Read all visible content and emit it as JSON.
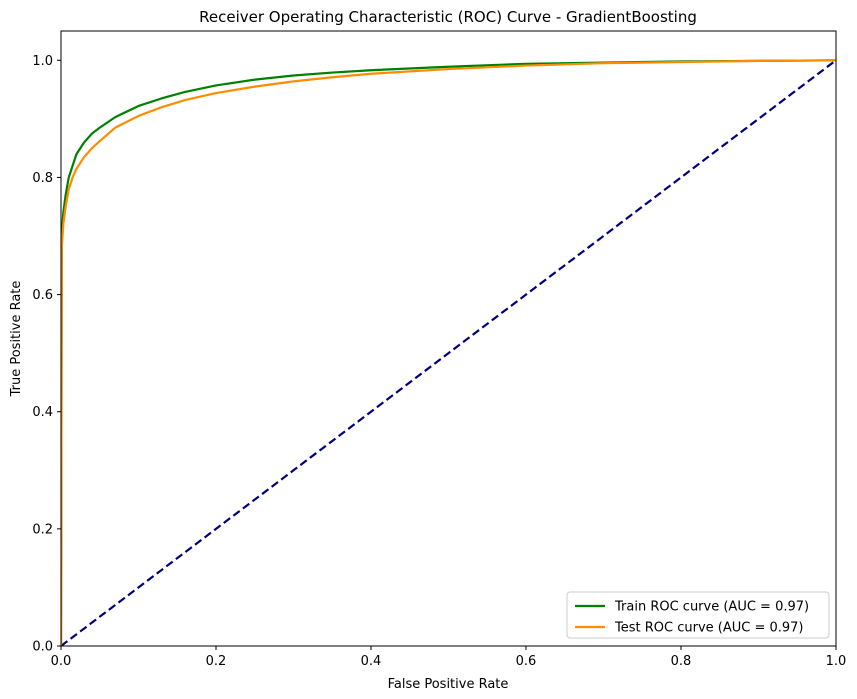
{
  "chart_data": {
    "type": "line",
    "title": "Receiver Operating Characteristic (ROC) Curve - GradientBoosting",
    "xlabel": "False Positive Rate",
    "ylabel": "True Positive Rate",
    "xlim": [
      0,
      1
    ],
    "ylim": [
      0,
      1.05
    ],
    "x_ticks": [
      "0.0",
      "0.2",
      "0.4",
      "0.6",
      "0.8",
      "1.0"
    ],
    "y_ticks": [
      "0.0",
      "0.2",
      "0.4",
      "0.6",
      "0.8",
      "1.0"
    ],
    "grid": false,
    "legend_position": "lower-right",
    "series": [
      {
        "name": "Train ROC curve (AUC = 0.97)",
        "color": "#008000",
        "style": "solid",
        "x": [
          0,
          0.001,
          0.003,
          0.006,
          0.01,
          0.015,
          0.02,
          0.03,
          0.04,
          0.05,
          0.07,
          0.1,
          0.13,
          0.16,
          0.2,
          0.25,
          0.3,
          0.35,
          0.4,
          0.5,
          0.6,
          0.7,
          0.8,
          0.9,
          1.0
        ],
        "y": [
          0,
          0.7,
          0.74,
          0.77,
          0.8,
          0.82,
          0.84,
          0.86,
          0.875,
          0.885,
          0.903,
          0.922,
          0.935,
          0.946,
          0.957,
          0.967,
          0.974,
          0.979,
          0.983,
          0.989,
          0.994,
          0.996,
          0.998,
          0.999,
          1.0
        ]
      },
      {
        "name": "Test ROC curve (AUC = 0.97)",
        "color": "#ff8c00",
        "style": "solid",
        "x": [
          0,
          0.001,
          0.003,
          0.006,
          0.01,
          0.015,
          0.02,
          0.03,
          0.04,
          0.05,
          0.07,
          0.1,
          0.13,
          0.16,
          0.2,
          0.25,
          0.3,
          0.35,
          0.4,
          0.5,
          0.6,
          0.7,
          0.8,
          0.9,
          1.0
        ],
        "y": [
          0,
          0.68,
          0.72,
          0.75,
          0.78,
          0.8,
          0.815,
          0.835,
          0.85,
          0.862,
          0.885,
          0.905,
          0.92,
          0.932,
          0.944,
          0.955,
          0.964,
          0.971,
          0.977,
          0.985,
          0.991,
          0.995,
          0.997,
          0.999,
          1.0
        ]
      },
      {
        "name": "",
        "color": "#000080",
        "style": "dashed",
        "x": [
          0,
          1
        ],
        "y": [
          0,
          1
        ]
      }
    ]
  }
}
